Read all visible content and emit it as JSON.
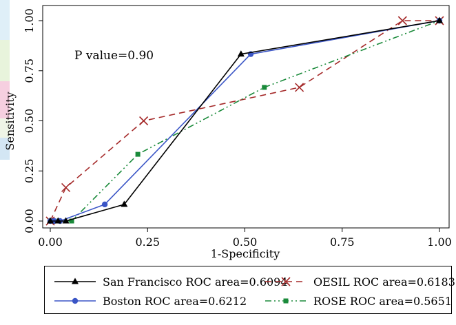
{
  "chart_data": {
    "type": "line",
    "xlabel": "1-Specificity",
    "ylabel": "Sensitivity",
    "xlim": [
      0,
      1
    ],
    "ylim": [
      0,
      1
    ],
    "xticks": [
      "0.00",
      "0.25",
      "0.50",
      "0.75",
      "1.00"
    ],
    "yticks": [
      "0.00",
      "0.25",
      "0.50",
      "0.75",
      "1.00"
    ],
    "annotation": "P value=0.90",
    "grid": false,
    "legend_position": "bottom",
    "series": [
      {
        "name": "San Francisco ROC area=0.6094",
        "color": "#000000",
        "marker": "triangle",
        "dash": "solid",
        "x": [
          0,
          0.02,
          0.04,
          0.19,
          0.49,
          1.0
        ],
        "y": [
          0,
          0,
          0,
          0.083,
          0.833,
          1.0
        ]
      },
      {
        "name": "OESIL ROC area=0.6183",
        "color": "#a52a2a",
        "marker": "x",
        "dash": "dashed",
        "x": [
          0,
          0.04,
          0.24,
          0.64,
          0.905,
          1.0
        ],
        "y": [
          0,
          0.167,
          0.5,
          0.667,
          1.0,
          1.0
        ]
      },
      {
        "name": "Boston ROC area=0.6212",
        "color": "#3a55c6",
        "marker": "circle",
        "dash": "solid",
        "x": [
          0,
          0.01,
          0.025,
          0.14,
          0.515,
          1.0
        ],
        "y": [
          0,
          0,
          0,
          0.083,
          0.833,
          1.0
        ]
      },
      {
        "name": "ROSE ROC area=0.5651",
        "color": "#1a8a3a",
        "marker": "square",
        "dash": "dashdot",
        "x": [
          0,
          0.01,
          0.055,
          0.225,
          0.55,
          1.0
        ],
        "y": [
          0,
          0,
          0,
          0.333,
          0.667,
          1.0
        ]
      }
    ]
  }
}
